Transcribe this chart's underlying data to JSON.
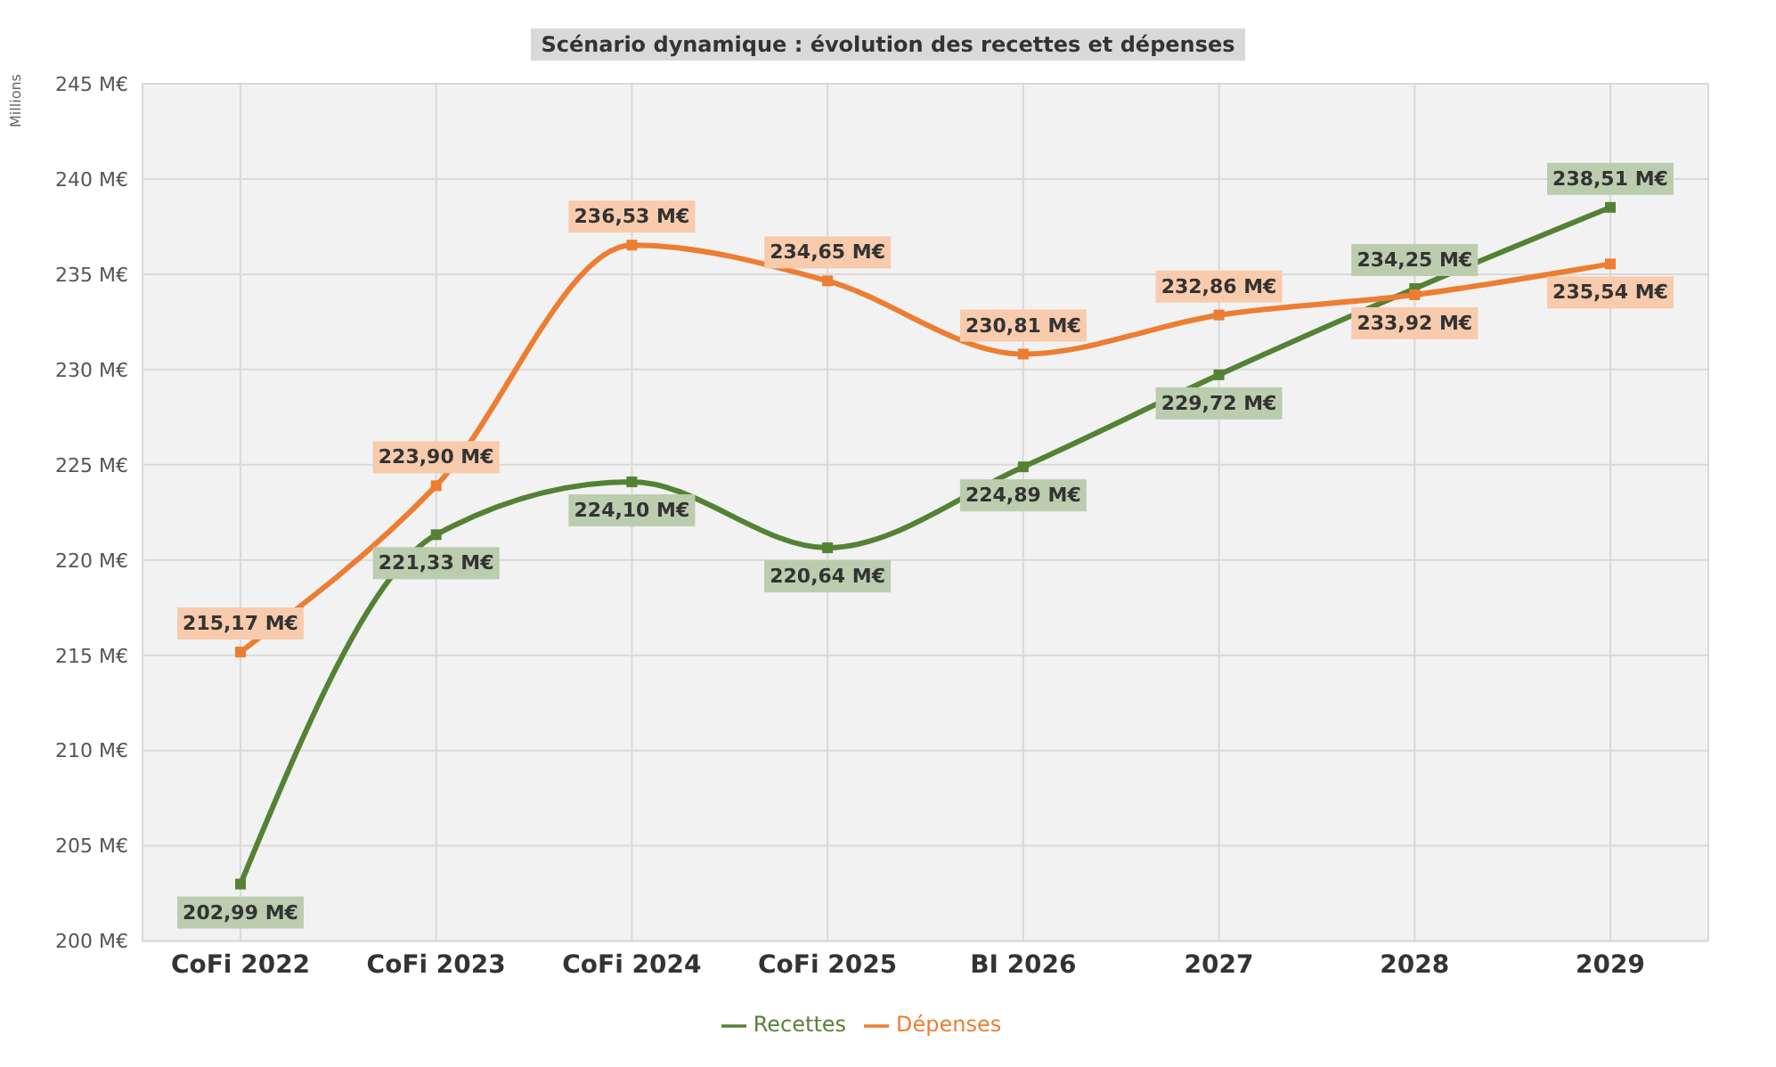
{
  "chart_data": {
    "type": "line",
    "title": "Scénario dynamique : évolution des recettes et dépenses",
    "ylabel": "Millions",
    "categories": [
      "CoFi 2022",
      "CoFi 2023",
      "CoFi 2024",
      "CoFi 2025",
      "BI 2026",
      "2027",
      "2028",
      "2029"
    ],
    "series": [
      {
        "name": "Recettes",
        "color": "#548235",
        "values": [
          202.99,
          221.33,
          224.1,
          220.64,
          224.89,
          229.72,
          234.25,
          238.51
        ],
        "value_labels": [
          "202,99 M€",
          "221,33 M€",
          "224,10 M€",
          "220,64 M€",
          "224,89 M€",
          "229,72 M€",
          "234,25 M€",
          "238,51 M€"
        ]
      },
      {
        "name": "Dépenses",
        "color": "#ed7d31",
        "values": [
          215.17,
          223.9,
          236.53,
          234.65,
          230.81,
          232.86,
          233.92,
          235.54
        ],
        "value_labels": [
          "215,17 M€",
          "223,90 M€",
          "236,53 M€",
          "234,65 M€",
          "230,81 M€",
          "232,86 M€",
          "233,92 M€",
          "235,54 M€"
        ]
      }
    ],
    "ylim": [
      200,
      245
    ],
    "yticks": [
      {
        "value": 200,
        "label": "200 M€"
      },
      {
        "value": 205,
        "label": "205 M€"
      },
      {
        "value": 210,
        "label": "210 M€"
      },
      {
        "value": 215,
        "label": "215 M€"
      },
      {
        "value": 220,
        "label": "220 M€"
      },
      {
        "value": 225,
        "label": "225 M€"
      },
      {
        "value": 230,
        "label": "230 M€"
      },
      {
        "value": 235,
        "label": "235 M€"
      },
      {
        "value": 240,
        "label": "240 M€"
      },
      {
        "value": 245,
        "label": "245 M€"
      }
    ],
    "grid": true,
    "legend": "bottom",
    "marker": "square",
    "line_style": "solid"
  }
}
